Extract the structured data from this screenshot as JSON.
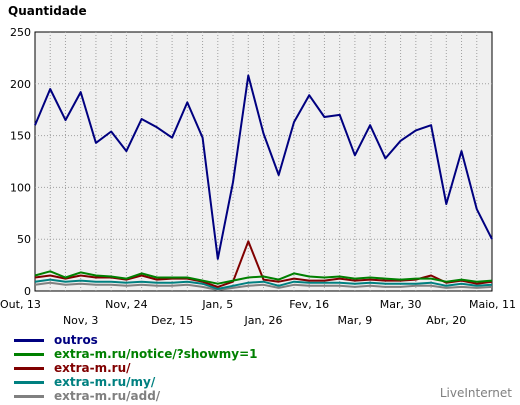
{
  "chart_data": {
    "type": "line",
    "ylabel": "Quantidade",
    "ylim": [
      0,
      250
    ],
    "yticks": [
      0,
      50,
      100,
      150,
      200,
      250
    ],
    "grid": true,
    "legend_position": "bottom-left",
    "x_ticks_row1": [
      {
        "index": 0,
        "label": "Out, 13"
      },
      {
        "index": 6,
        "label": "Nov, 24"
      },
      {
        "index": 12,
        "label": "Jan, 5"
      },
      {
        "index": 18,
        "label": "Fev, 16"
      },
      {
        "index": 24,
        "label": "Mar, 30"
      },
      {
        "index": 30,
        "label": "Maio, 11"
      }
    ],
    "x_ticks_row2": [
      {
        "index": 3,
        "label": "Nov, 3"
      },
      {
        "index": 9,
        "label": "Dez, 15"
      },
      {
        "index": 15,
        "label": "Jan, 26"
      },
      {
        "index": 21,
        "label": "Mar, 9"
      },
      {
        "index": 27,
        "label": "Abr, 20"
      }
    ],
    "series": [
      {
        "name": "outros",
        "color": "#000080",
        "values": [
          160,
          195,
          165,
          192,
          143,
          154,
          135,
          166,
          158,
          148,
          182,
          148,
          31,
          105,
          208,
          152,
          112,
          163,
          189,
          168,
          170,
          131,
          160,
          128,
          145,
          155,
          160,
          84,
          135,
          79,
          50
        ]
      },
      {
        "name": "extra-m.ru/notice/?showmy=1",
        "color": "#008000",
        "values": [
          15,
          19,
          13,
          18,
          15,
          14,
          12,
          17,
          13,
          13,
          13,
          10,
          7,
          10,
          13,
          14,
          11,
          17,
          14,
          13,
          14,
          12,
          13,
          12,
          11,
          12,
          12,
          9,
          11,
          9,
          10
        ]
      },
      {
        "name": "extra-m.ru/",
        "color": "#800000",
        "values": [
          13,
          15,
          12,
          15,
          13,
          13,
          11,
          15,
          11,
          12,
          12,
          9,
          4,
          9,
          48,
          11,
          9,
          12,
          10,
          10,
          12,
          10,
          11,
          10,
          10,
          11,
          15,
          8,
          10,
          7,
          9
        ]
      },
      {
        "name": "extra-m.ru/my/",
        "color": "#008080",
        "values": [
          9,
          11,
          9,
          10,
          9,
          9,
          8,
          9,
          8,
          8,
          9,
          7,
          2,
          5,
          8,
          9,
          5,
          9,
          8,
          8,
          8,
          7,
          8,
          7,
          7,
          7,
          8,
          5,
          7,
          5,
          6
        ]
      },
      {
        "name": "extra-m.ru/add/",
        "color": "#808080",
        "values": [
          6,
          8,
          6,
          7,
          6,
          6,
          5,
          6,
          5,
          5,
          6,
          4,
          1,
          3,
          5,
          6,
          3,
          6,
          5,
          5,
          5,
          4,
          5,
          4,
          4,
          5,
          5,
          3,
          4,
          3,
          4
        ]
      }
    ]
  },
  "brand": "LiveInternet"
}
